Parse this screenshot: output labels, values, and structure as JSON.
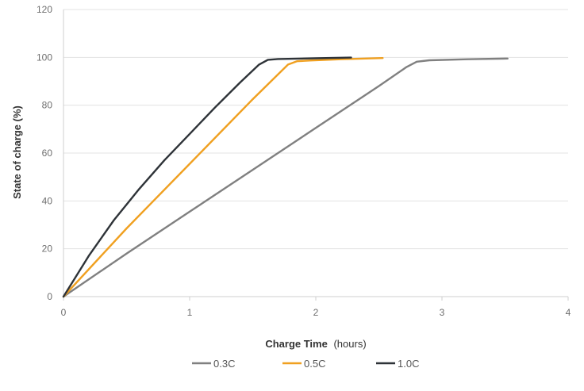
{
  "chart_data": {
    "type": "line",
    "title": "",
    "xlabel_bold": "Charge Time",
    "xlabel_rest": "(hours)",
    "ylabel": "State of charge (%)",
    "xlim": [
      0,
      4
    ],
    "ylim": [
      0,
      120
    ],
    "xticks": [
      0,
      1,
      2,
      3,
      4
    ],
    "yticks": [
      0,
      20,
      40,
      60,
      80,
      100,
      120
    ],
    "grid": "horizontal",
    "legend": "bottom",
    "series": [
      {
        "name": "0.3C",
        "color": "#808080",
        "x": [
          0,
          0.5,
          1.0,
          1.5,
          2.0,
          2.5,
          2.72,
          2.8,
          2.9,
          3.2,
          3.52
        ],
        "y": [
          0,
          18,
          35.5,
          53,
          70.5,
          88,
          96,
          98.2,
          98.8,
          99.2,
          99.5
        ]
      },
      {
        "name": "0.5C",
        "color": "#f0a020",
        "x": [
          0,
          0.5,
          1.0,
          1.5,
          1.78,
          1.85,
          1.95,
          2.2,
          2.53
        ],
        "y": [
          0,
          28.5,
          55.5,
          82.5,
          97,
          98.4,
          98.7,
          99.2,
          99.7
        ]
      },
      {
        "name": "1.0C",
        "color": "#2e3338",
        "x": [
          0,
          0.2,
          0.4,
          0.6,
          0.8,
          1.0,
          1.2,
          1.4,
          1.55,
          1.62,
          1.7,
          2.0,
          2.28
        ],
        "y": [
          0,
          17,
          32,
          45,
          57,
          68,
          79,
          89.5,
          97,
          99,
          99.3,
          99.6,
          99.9
        ]
      }
    ]
  }
}
